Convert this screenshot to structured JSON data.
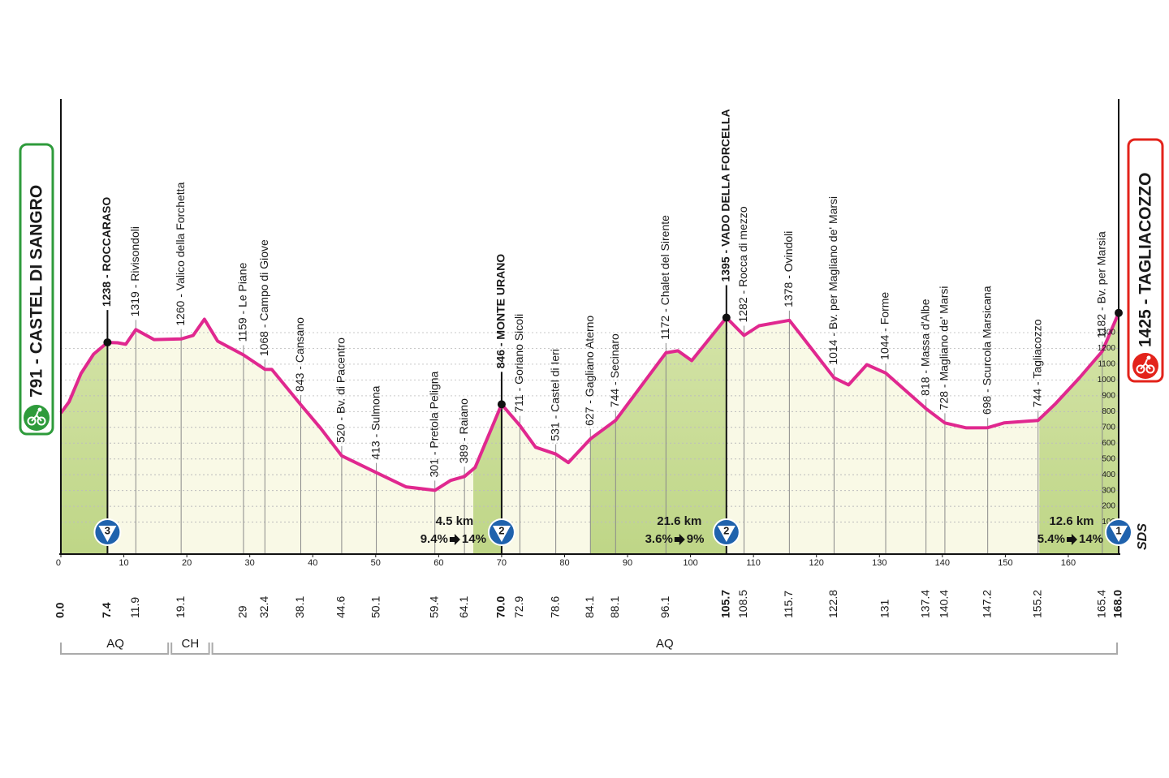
{
  "chart_data": {
    "type": "area",
    "color": "#e0288f",
    "x": [
      0,
      1.3,
      3.2,
      5.2,
      7.4,
      9.0,
      10.3,
      11.9,
      14.8,
      19.1,
      21,
      22.8,
      24.9,
      29.0,
      32.4,
      33.5,
      38.1,
      41.3,
      44.6,
      50.1,
      54.8,
      59.4,
      61.9,
      64.1,
      65.8,
      70.0,
      72.9,
      75.4,
      78.6,
      80.6,
      84.1,
      88.1,
      92.2,
      96.1,
      98,
      100.2,
      105.7,
      108.5,
      110.9,
      115.7,
      117.3,
      122.8,
      125.1,
      128,
      131.0,
      137.4,
      140.4,
      143.8,
      147.2,
      149.8,
      155.2,
      158,
      161.8,
      165.4,
      168.0
    ],
    "values": [
      791,
      862,
      1041,
      1164,
      1238,
      1236,
      1226,
      1319,
      1256,
      1260,
      1282,
      1385,
      1246,
      1159,
      1068,
      1067,
      843,
      692,
      520,
      413,
      323,
      301,
      364,
      389,
      446,
      846,
      711,
      574,
      531,
      477,
      627,
      744,
      964,
      1172,
      1185,
      1123,
      1395,
      1282,
      1344,
      1378,
      1297,
      1014,
      969,
      1097,
      1044,
      818,
      728,
      697,
      698,
      728,
      744,
      851,
      1015,
      1182,
      1425
    ],
    "xlim": [
      0,
      168
    ],
    "xticks": [
      0,
      10,
      20,
      30,
      40,
      50,
      60,
      70,
      80,
      90,
      100,
      110,
      120,
      130,
      140,
      150,
      160
    ],
    "ylim": [
      0,
      2780
    ],
    "yticks": [
      100,
      200,
      300,
      400,
      500,
      600,
      700,
      800,
      900,
      1000,
      1100,
      1200,
      1300
    ],
    "grid": true,
    "start": {
      "km": {
        "value": 0,
        "label": "0.0"
      },
      "name": "791 - CASTEL DI SANGRO",
      "color": "#2e9b3b"
    },
    "finish": {
      "km": {
        "value": 168,
        "label": "168.0"
      },
      "name": "1425 - TAGLIACOZZO",
      "color": "#e3231b",
      "climb": {
        "category": 1,
        "length": {
          "value": 12.6,
          "label": "12.6 km"
        },
        "gradient": "5.4%",
        "max": "14%"
      }
    },
    "waypoints": [
      {
        "km": 7.4,
        "name": "1238 - ROCCARASO",
        "climb": {
          "category": 3
        }
      },
      {
        "km": 11.9,
        "name": "1319 - Rivisondoli"
      },
      {
        "km": 19.1,
        "name": "1260 - Valico della Forchetta"
      },
      {
        "km": 29.0,
        "name": "1159 - Le Piane"
      },
      {
        "km": 32.4,
        "name": "1068 - Campo di Giove"
      },
      {
        "km": 38.1,
        "name": "843 - Cansano"
      },
      {
        "km": 44.6,
        "name": "520 - Bv. di Pacentro"
      },
      {
        "km": 50.1,
        "name": "413 - Sulmona"
      },
      {
        "km": 59.4,
        "name": "301 - Pretola Peligna"
      },
      {
        "km": 64.1,
        "name": "389 - Raiano"
      },
      {
        "km": {
          "value": 70,
          "label": "70.0"
        },
        "name": "846 - MONTE URANO",
        "climb": {
          "category": 2,
          "length": {
            "value": 4.5,
            "label": "4.5 km"
          },
          "gradient": "9.4%",
          "max": "14%"
        }
      },
      {
        "km": 72.9,
        "name": "711 - Goriano Sicoli"
      },
      {
        "km": 78.6,
        "name": "531 - Castel di Ieri"
      },
      {
        "km": 84.1,
        "name": "627 - Gagliano Aterno"
      },
      {
        "km": 88.1,
        "name": "744 - Secinaro"
      },
      {
        "km": 96.1,
        "name": "1172 - Chalet del Sirente"
      },
      {
        "km": 105.7,
        "name": "1395 - VADO DELLA FORCELLA",
        "climb": {
          "category": 2,
          "length": {
            "value": 21.6,
            "label": "21.6 km"
          },
          "gradient": "3.6%",
          "max": "9%"
        }
      },
      {
        "km": 108.5,
        "name": "1282 - Rocca di mezzo"
      },
      {
        "km": 115.7,
        "name": "1378 - Ovindoli"
      },
      {
        "km": 122.8,
        "name": "1014 - Bv. per Magliano de' Marsi"
      },
      {
        "km": 131.0,
        "name": "1044 - Forme"
      },
      {
        "km": 137.4,
        "name": "818 - Massa d'Albe"
      },
      {
        "km": 140.4,
        "name": "728 - Magliano de' Marsi"
      },
      {
        "km": 147.2,
        "name": "698 - Scurcola Marsicana"
      },
      {
        "km": 155.2,
        "name": "744 - Tagliacozzo"
      },
      {
        "km": 165.4,
        "name": "1182 - Bv. per Marsia"
      }
    ],
    "provinces": [
      {
        "name": "AQ",
        "from": 0,
        "to": 17.3
      },
      {
        "name": "CH",
        "from": 17.3,
        "to": 23.8
      },
      {
        "name": "AQ",
        "from": 23.8,
        "to": 168
      }
    ],
    "brand": "SDS"
  }
}
